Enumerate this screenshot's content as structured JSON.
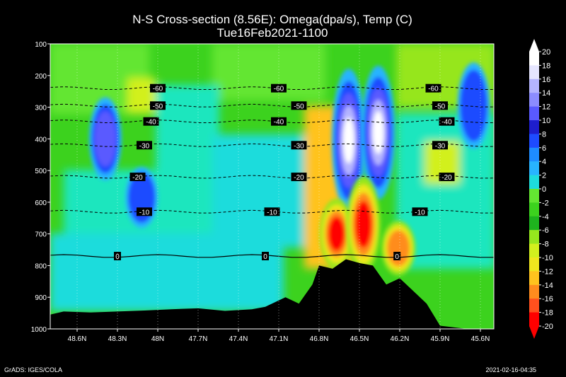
{
  "chart_data": {
    "type": "heatmap",
    "title": "N-S Cross-section (8.56E): Omega(dpa/s), Temp (C)",
    "subtitle": "Tue16Feb2021-1100",
    "x_ticks": [
      "48.6N",
      "48.3N",
      "48N",
      "47.7N",
      "47.4N",
      "47.1N",
      "46.8N",
      "46.5N",
      "46.2N",
      "45.9N",
      "45.6N"
    ],
    "x_range": [
      "48.8N",
      "45.5N"
    ],
    "y_ticks": [
      100,
      200,
      300,
      400,
      500,
      600,
      700,
      800,
      900,
      1000
    ],
    "y_range": [
      100,
      1000
    ],
    "colorbar": {
      "ticks": [
        20,
        18,
        16,
        14,
        12,
        10,
        8,
        6,
        4,
        2,
        0,
        -2,
        -4,
        -6,
        -8,
        -10,
        -12,
        -14,
        -16,
        -18,
        -20
      ],
      "colors": [
        "#ffffff",
        "#e6e6ff",
        "#b4b4ff",
        "#8c8cff",
        "#5a5aff",
        "#1e1ecd",
        "#1e4bff",
        "#1e8cff",
        "#28b4ff",
        "#1edcdc",
        "#1ee6be",
        "#64e632",
        "#3cd21e",
        "#1eb41e",
        "#96e61e",
        "#d2f01e",
        "#f0e61e",
        "#ffc31e",
        "#ff8c1e",
        "#ff501e",
        "#ff0000"
      ]
    },
    "omega_field": [
      {
        "name": "ascent_core_A",
        "lat": 46.58,
        "p_top": 210,
        "p_bottom": 600,
        "value": 20
      },
      {
        "name": "ascent_core_B",
        "lat": 46.36,
        "p_top": 200,
        "p_bottom": 560,
        "value": 20
      },
      {
        "name": "descent_core_A",
        "lat": 46.67,
        "p_top": 620,
        "p_bottom": 780,
        "value": -20
      },
      {
        "name": "descent_core_B",
        "lat": 46.47,
        "p_top": 550,
        "p_bottom": 790,
        "value": -20
      },
      {
        "name": "descent_core_C",
        "lat": 46.21,
        "p_top": 690,
        "p_bottom": 800,
        "value": -18
      },
      {
        "name": "ascent_left_1",
        "lat": 48.39,
        "p_top": 300,
        "p_bottom": 500,
        "value": 12
      },
      {
        "name": "ascent_left_2",
        "lat": 48.12,
        "p_top": 520,
        "p_bottom": 650,
        "value": 10
      },
      {
        "name": "ascent_right",
        "lat": 45.65,
        "p_top": 190,
        "p_bottom": 400,
        "value": 8
      }
    ],
    "temperature_contours": [
      {
        "value": -60,
        "p": 240,
        "label": "-60"
      },
      {
        "value": -50,
        "p": 295,
        "label": "-50"
      },
      {
        "value": -40,
        "p": 345,
        "label": "-40"
      },
      {
        "value": -30,
        "p": 420,
        "label": "-30"
      },
      {
        "value": -20,
        "p": 520,
        "label": "-20"
      },
      {
        "value": -10,
        "p": 630,
        "label": "-10"
      },
      {
        "value": 0,
        "p": 770,
        "label": "0"
      }
    ],
    "terrain_pressure": [
      {
        "lat": 48.8,
        "p": 955
      },
      {
        "lat": 48.7,
        "p": 945
      },
      {
        "lat": 48.5,
        "p": 948
      },
      {
        "lat": 48.3,
        "p": 945
      },
      {
        "lat": 48.1,
        "p": 942
      },
      {
        "lat": 47.9,
        "p": 938
      },
      {
        "lat": 47.7,
        "p": 935
      },
      {
        "lat": 47.5,
        "p": 943
      },
      {
        "lat": 47.3,
        "p": 938
      },
      {
        "lat": 47.2,
        "p": 930
      },
      {
        "lat": 47.05,
        "p": 900
      },
      {
        "lat": 46.95,
        "p": 920
      },
      {
        "lat": 46.85,
        "p": 860
      },
      {
        "lat": 46.8,
        "p": 800
      },
      {
        "lat": 46.7,
        "p": 810
      },
      {
        "lat": 46.6,
        "p": 780
      },
      {
        "lat": 46.5,
        "p": 792
      },
      {
        "lat": 46.4,
        "p": 800
      },
      {
        "lat": 46.3,
        "p": 860
      },
      {
        "lat": 46.2,
        "p": 840
      },
      {
        "lat": 46.1,
        "p": 880
      },
      {
        "lat": 46.0,
        "p": 920
      },
      {
        "lat": 45.9,
        "p": 990
      },
      {
        "lat": 45.7,
        "p": 1000
      },
      {
        "lat": 45.5,
        "p": 1002
      }
    ]
  },
  "footer": {
    "left": "GrADS: IGES/COLA",
    "right": "2021-02-16-04:35"
  }
}
